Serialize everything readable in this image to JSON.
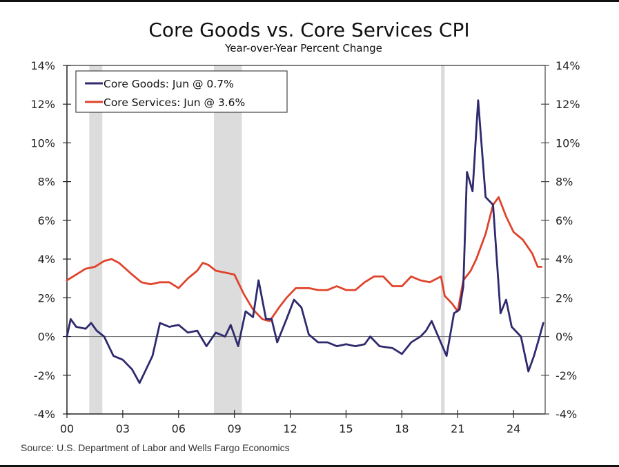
{
  "chart_data": {
    "type": "line",
    "title": "Core Goods vs. Core Services CPI",
    "subtitle": "Year-over-Year Percent Change",
    "xlabel": "",
    "ylabel": "",
    "xlim": [
      2000,
      2025.7
    ],
    "ylim": [
      -4,
      14
    ],
    "y_ticks": [
      -4,
      -2,
      0,
      2,
      4,
      6,
      8,
      10,
      12,
      14
    ],
    "y_tick_labels": [
      "-4%",
      "-2%",
      "0%",
      "2%",
      "4%",
      "6%",
      "8%",
      "10%",
      "12%",
      "14%"
    ],
    "x_ticks": [
      2000,
      2003,
      2006,
      2009,
      2012,
      2015,
      2018,
      2021,
      2024
    ],
    "x_tick_labels": [
      "00",
      "03",
      "06",
      "09",
      "12",
      "15",
      "18",
      "21",
      "24"
    ],
    "grid": false,
    "zero_line": true,
    "legend": {
      "placement": "top-left",
      "entries": [
        "Core Goods: Jun @ 0.7%",
        "Core Services: Jun @ 3.6%"
      ]
    },
    "recessions": [
      [
        2001.2,
        2001.9
      ],
      [
        2007.9,
        2009.4
      ],
      [
        2020.1,
        2020.3
      ]
    ],
    "source": "Source: U.S. Department of Labor and Wells Fargo Economics",
    "series": [
      {
        "name": "Core Goods",
        "color": "#2e2a6e",
        "x": [
          2000.0,
          2000.2,
          2000.5,
          2001.0,
          2001.3,
          2001.6,
          2002.0,
          2002.5,
          2003.0,
          2003.5,
          2003.9,
          2004.2,
          2004.6,
          2005.0,
          2005.5,
          2006.0,
          2006.5,
          2007.0,
          2007.5,
          2008.0,
          2008.5,
          2008.8,
          2009.2,
          2009.6,
          2010.0,
          2010.3,
          2010.7,
          2011.0,
          2011.3,
          2011.8,
          2012.2,
          2012.6,
          2013.0,
          2013.5,
          2014.0,
          2014.5,
          2015.0,
          2015.5,
          2016.0,
          2016.3,
          2016.8,
          2017.5,
          2018.0,
          2018.5,
          2019.0,
          2019.3,
          2019.6,
          2020.0,
          2020.4,
          2020.8,
          2021.1,
          2021.3,
          2021.5,
          2021.8,
          2022.1,
          2022.5,
          2022.9,
          2023.3,
          2023.6,
          2023.9,
          2024.4,
          2024.8,
          2025.1,
          2025.4,
          2025.6
        ],
        "values": [
          0.0,
          0.9,
          0.5,
          0.4,
          0.7,
          0.3,
          0.0,
          -1.0,
          -1.2,
          -1.7,
          -2.4,
          -1.8,
          -1.0,
          0.7,
          0.5,
          0.6,
          0.2,
          0.3,
          -0.5,
          0.2,
          0.0,
          0.6,
          -0.5,
          1.3,
          1.0,
          2.9,
          0.9,
          0.9,
          -0.3,
          0.9,
          1.9,
          1.5,
          0.1,
          -0.3,
          -0.3,
          -0.5,
          -0.4,
          -0.5,
          -0.4,
          0.0,
          -0.5,
          -0.6,
          -0.9,
          -0.3,
          0.0,
          0.3,
          0.8,
          -0.1,
          -1.0,
          1.2,
          1.4,
          2.6,
          8.5,
          7.5,
          12.2,
          7.2,
          6.8,
          1.2,
          1.9,
          0.5,
          0.0,
          -1.8,
          -1.0,
          0.0,
          0.7
        ]
      },
      {
        "name": "Core Services",
        "color": "#e0432b",
        "x": [
          2000.0,
          2000.5,
          2001.0,
          2001.5,
          2002.0,
          2002.4,
          2002.8,
          2003.5,
          2004.0,
          2004.5,
          2005.0,
          2005.5,
          2006.0,
          2006.5,
          2007.0,
          2007.3,
          2007.6,
          2008.0,
          2008.5,
          2009.0,
          2009.5,
          2010.0,
          2010.5,
          2010.9,
          2011.4,
          2011.8,
          2012.3,
          2013.0,
          2013.5,
          2014.0,
          2014.5,
          2015.0,
          2015.5,
          2016.0,
          2016.5,
          2017.0,
          2017.5,
          2018.0,
          2018.5,
          2019.0,
          2019.5,
          2020.1,
          2020.3,
          2020.7,
          2021.0,
          2021.3,
          2021.7,
          2022.0,
          2022.5,
          2022.9,
          2023.2,
          2023.6,
          2024.0,
          2024.5,
          2025.0,
          2025.3,
          2025.5
        ],
        "values": [
          2.9,
          3.2,
          3.5,
          3.6,
          3.9,
          4.0,
          3.8,
          3.2,
          2.8,
          2.7,
          2.8,
          2.8,
          2.5,
          3.0,
          3.4,
          3.8,
          3.7,
          3.4,
          3.3,
          3.2,
          2.2,
          1.4,
          0.9,
          0.8,
          1.5,
          2.0,
          2.5,
          2.5,
          2.4,
          2.4,
          2.6,
          2.4,
          2.4,
          2.8,
          3.1,
          3.1,
          2.6,
          2.6,
          3.1,
          2.9,
          2.8,
          3.1,
          2.1,
          1.7,
          1.3,
          2.9,
          3.4,
          4.0,
          5.3,
          6.8,
          7.2,
          6.2,
          5.4,
          5.0,
          4.3,
          3.6,
          3.6
        ]
      }
    ]
  }
}
